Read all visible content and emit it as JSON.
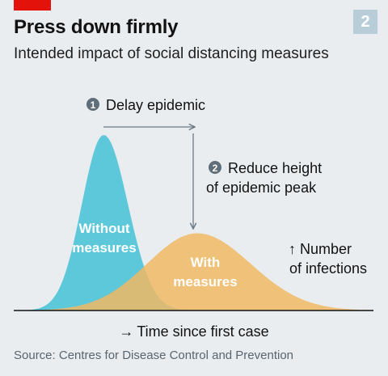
{
  "header": {
    "badge_number": "2",
    "title": "Press down firmly",
    "subtitle": "Intended impact of social distancing measures"
  },
  "annotations": {
    "step1_number": "1",
    "step1_text": "Delay epidemic",
    "step2_number": "2",
    "step2_line1": "Reduce height",
    "step2_line2": "of epidemic peak"
  },
  "chart_data": {
    "type": "area",
    "xlabel": "Time since first case",
    "ylabel_line1": "Number",
    "ylabel_line2": "of infections",
    "axis_arrows": {
      "x": "→",
      "y": "↑"
    },
    "grid": false,
    "series": [
      {
        "name": "Without measures",
        "label_line1": "Without",
        "label_line2": "measures",
        "color": "#3ebfd3",
        "peak_relative": 1.0,
        "peak_position": 0.25
      },
      {
        "name": "With measures",
        "label_line1": "With",
        "label_line2": "measures",
        "color": "#f0b864",
        "peak_relative": 0.44,
        "peak_position": 0.51
      }
    ]
  },
  "footer": {
    "source": "Source: Centres for Disease Control and Prevention"
  },
  "colors": {
    "background": "#e9edf0",
    "accent_red": "#e3120b",
    "badge": "#b9cdd9",
    "without_measures": "#3ebfd3",
    "with_measures": "#f0b864",
    "annotation_grey": "#6b7a85",
    "axis": "#121212"
  }
}
